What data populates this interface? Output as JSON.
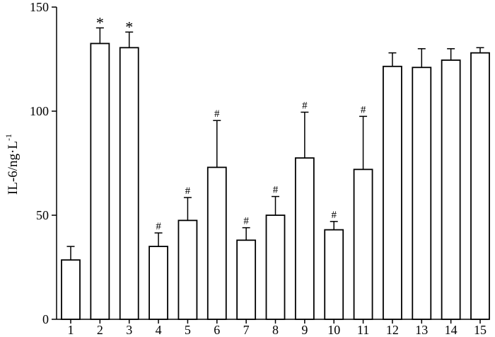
{
  "chart_data": {
    "type": "bar",
    "title": "",
    "xlabel": "",
    "ylabel": "IL-6/ng·L",
    "ylabel_superscript": "-1",
    "categories": [
      "1",
      "2",
      "3",
      "4",
      "5",
      "6",
      "7",
      "8",
      "9",
      "10",
      "11",
      "12",
      "13",
      "14",
      "15"
    ],
    "values": [
      28.5,
      132.5,
      130.5,
      35,
      47.5,
      73,
      38,
      50,
      77.5,
      43,
      72,
      121.5,
      121,
      124.5,
      128
    ],
    "errors": [
      6.5,
      7.5,
      7.5,
      6.5,
      11,
      22.5,
      6,
      9,
      22,
      4,
      25.5,
      6.5,
      9,
      5.5,
      2.5
    ],
    "annotations": [
      "",
      "*",
      "*",
      "#",
      "#",
      "#",
      "#",
      "#",
      "#",
      "#",
      "#",
      "",
      "",
      "",
      ""
    ],
    "ylim": [
      0,
      150
    ],
    "yticks": [
      0,
      50,
      100,
      150
    ],
    "grid": false,
    "legend": "none",
    "colors": {
      "bar_fill": "#ffffff",
      "bar_stroke": "#000000"
    }
  }
}
